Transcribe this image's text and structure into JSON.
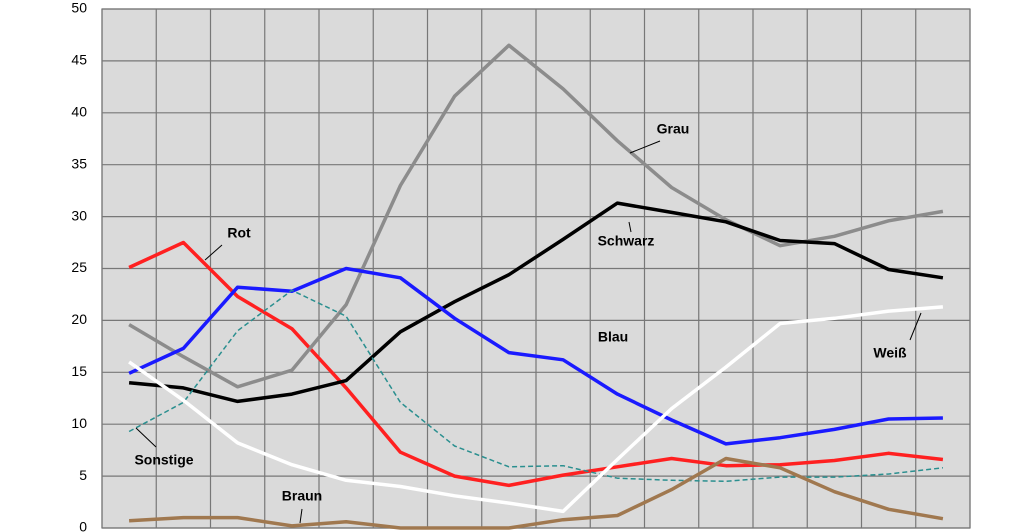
{
  "chart_data": {
    "type": "line",
    "categories": [
      null,
      null,
      null,
      null,
      null,
      null,
      null,
      null,
      null,
      null,
      null,
      null,
      null,
      null,
      null,
      null
    ],
    "ylim": [
      0,
      50
    ],
    "yticks": [
      0,
      5,
      10,
      15,
      20,
      25,
      30,
      35,
      40,
      45,
      50
    ],
    "grid": true,
    "series": [
      {
        "name": "Rot",
        "color": "#ff2020",
        "values": [
          25.1,
          27.5,
          22.3,
          19.2,
          13.5,
          7.3,
          5.0,
          4.1,
          5.1,
          5.9,
          6.7,
          6.0,
          6.1,
          6.5,
          7.2,
          6.6
        ]
      },
      {
        "name": "Grau",
        "color": "#8c8c8c",
        "values": [
          19.6,
          16.5,
          13.6,
          15.2,
          21.5,
          33.0,
          41.6,
          46.5,
          42.3,
          37.3,
          32.8,
          29.7,
          27.2,
          28.1,
          29.6,
          30.5
        ]
      },
      {
        "name": "Schwarz",
        "color": "#000000",
        "values": [
          14.0,
          13.5,
          12.2,
          12.9,
          14.2,
          18.9,
          21.8,
          24.4,
          27.8,
          31.3,
          30.4,
          29.5,
          27.7,
          27.4,
          24.9,
          24.1
        ]
      },
      {
        "name": "Blau",
        "color": "#1a1aff",
        "values": [
          14.9,
          17.3,
          23.2,
          22.8,
          25.0,
          24.1,
          20.2,
          16.9,
          16.2,
          12.9,
          10.4,
          8.1,
          8.7,
          9.5,
          10.5,
          10.6
        ]
      },
      {
        "name": "Sonstige",
        "color": "#2a8f8f",
        "dashed": true,
        "values": [
          9.3,
          12.1,
          19.0,
          22.9,
          20.4,
          12.1,
          7.9,
          5.9,
          6.0,
          4.8,
          4.6,
          4.5,
          4.9,
          4.9,
          5.2,
          5.8
        ]
      },
      {
        "name": "Weiß",
        "color": "#ffffff",
        "values": [
          16.0,
          12.3,
          8.2,
          6.1,
          4.6,
          4.0,
          3.1,
          2.4,
          1.6,
          6.6,
          11.5,
          15.5,
          19.7,
          20.2,
          20.9,
          21.3
        ]
      },
      {
        "name": "Braun",
        "color": "#a0784f",
        "values": [
          0.7,
          1.0,
          1.0,
          0.2,
          0.6,
          0,
          0,
          0,
          0.8,
          1.2,
          3.7,
          6.7,
          5.8,
          3.5,
          1.8,
          0.9
        ]
      }
    ]
  }
}
